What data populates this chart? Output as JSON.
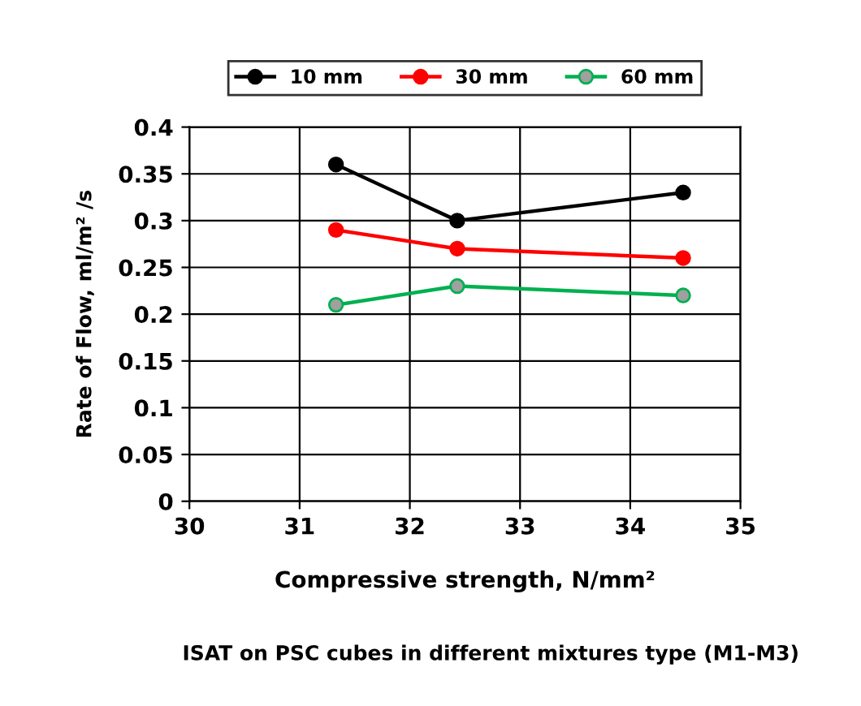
{
  "chart_data": {
    "type": "line",
    "xlabel": "Compressive strength, N/mm²",
    "ylabel": "Rate of Flow, ml/m² /s",
    "annotations": [
      "ISAT on PSC cubes in different mixtures type (M1-M3)"
    ],
    "x": [
      31.33,
      32.43,
      34.48
    ],
    "series": [
      {
        "name": "10 mm",
        "color": "#000000",
        "values": [
          0.36,
          0.3,
          0.33
        ]
      },
      {
        "name": "30 mm",
        "color": "#ff0000",
        "values": [
          0.29,
          0.27,
          0.26
        ]
      },
      {
        "name": "60 mm",
        "color": "#00b050",
        "values": [
          0.21,
          0.23,
          0.22
        ]
      }
    ],
    "xlim": [
      30,
      35
    ],
    "ylim": [
      0,
      0.4
    ],
    "xticks": [
      30,
      31,
      32,
      33,
      34,
      35
    ],
    "yticks": [
      0,
      0.05,
      0.1,
      0.15,
      0.2,
      0.25,
      0.3,
      0.35,
      0.4
    ],
    "grid": true,
    "legend": "top",
    "marker": "circle",
    "line_style": "solid"
  }
}
